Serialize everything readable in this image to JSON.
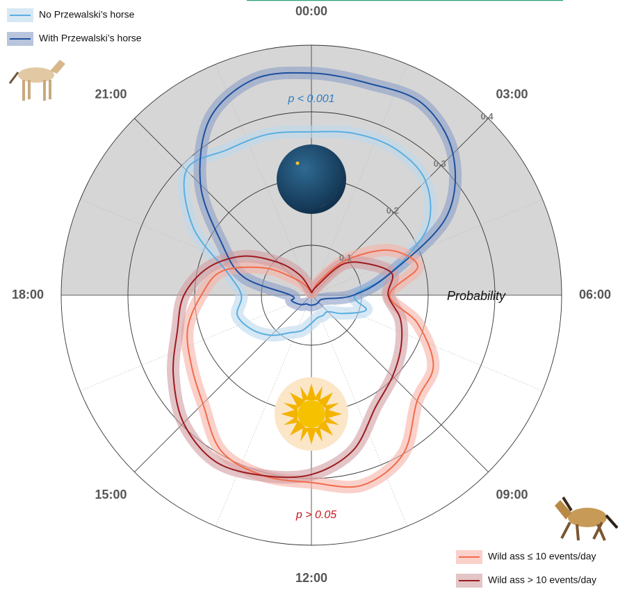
{
  "chart_data": {
    "type": "polar-line",
    "ylabel": "Probability",
    "x": [
      0,
      1,
      2,
      3,
      4,
      5,
      6,
      7,
      8,
      9,
      10,
      11,
      12,
      13,
      14,
      15,
      16,
      17,
      18,
      19,
      20,
      21,
      22,
      23
    ],
    "xlim": [
      0,
      24
    ],
    "xticks": [
      {
        "value": 0,
        "label": "00:00"
      },
      {
        "value": 3,
        "label": "03:00"
      },
      {
        "value": 6,
        "label": "06:00"
      },
      {
        "value": 9,
        "label": "09:00"
      },
      {
        "value": 12,
        "label": "12:00"
      },
      {
        "value": 15,
        "label": "15:00"
      },
      {
        "value": 18,
        "label": "18:00"
      },
      {
        "value": 21,
        "label": "21:00"
      }
    ],
    "ylim": [
      0.025,
      0.4
    ],
    "yticks": [
      0.1,
      0.2,
      0.3,
      0.4
    ],
    "series": [
      {
        "name": "No Przewalski’s horse",
        "color": "#5aaee0",
        "band_color": "#bcd9ee",
        "legend": "upper left",
        "values": [
          0.27,
          0.276,
          0.278,
          0.267,
          0.225,
          0.145,
          0.09,
          0.11,
          0.08,
          0.06,
          0.06,
          0.06,
          0.067,
          0.08,
          0.09,
          0.11,
          0.128,
          0.14,
          0.13,
          0.155,
          0.23,
          0.29,
          0.277,
          0.275
        ]
      },
      {
        "name": "With Przewalski’s horse",
        "color": "#1c4f9e",
        "band_color": "#8a9fc6",
        "legend": "upper left",
        "values": [
          0.358,
          0.354,
          0.357,
          0.325,
          0.258,
          0.145,
          0.088,
          0.046,
          0.04,
          0.04,
          0.04,
          0.04,
          0.04,
          0.04,
          0.04,
          0.045,
          0.05,
          0.056,
          0.056,
          0.13,
          0.18,
          0.26,
          0.33,
          0.36
        ]
      },
      {
        "name": "Wild ass ≤ 10 events/day",
        "color": "#f26b4a",
        "band_color": "#f7b2a6",
        "legend": "lower right",
        "values": [
          0.03,
          0.03,
          0.05,
          0.1,
          0.16,
          0.19,
          0.142,
          0.19,
          0.236,
          0.249,
          0.3,
          0.32,
          0.306,
          0.305,
          0.295,
          0.255,
          0.233,
          0.217,
          0.19,
          0.164,
          0.107,
          0.06,
          0.04,
          0.03
        ]
      },
      {
        "name": "Wild ass > 10 events/day",
        "color": "#9b1b20",
        "band_color": "#d09ca2",
        "legend": "lower right",
        "values": [
          0.03,
          0.03,
          0.04,
          0.09,
          0.12,
          0.15,
          0.14,
          0.163,
          0.18,
          0.197,
          0.218,
          0.266,
          0.294,
          0.305,
          0.313,
          0.296,
          0.264,
          0.233,
          0.216,
          0.185,
          0.142,
          0.094,
          0.06,
          0.035
        ]
      }
    ],
    "annotations": [
      {
        "text": "p < 0.001",
        "color": "#2f7ec2"
      },
      {
        "text": "p > 0.05",
        "color": "#c8141c"
      }
    ]
  }
}
